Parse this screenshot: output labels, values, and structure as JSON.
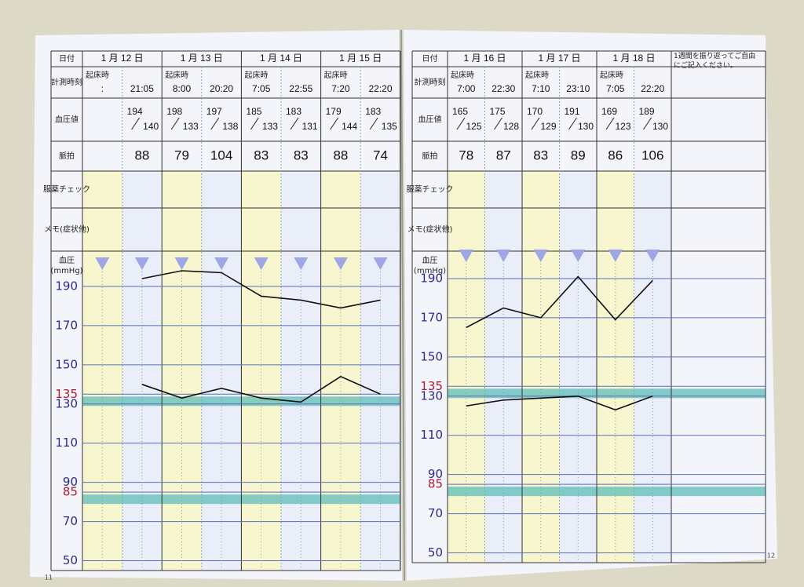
{
  "labels": {
    "date": "日付",
    "time": "計測時刻",
    "bp": "血圧値",
    "pulse": "脈拍",
    "med": "服薬チェック",
    "memo": "メモ(症状他)",
    "chart": "血圧",
    "unit": "(mmHg)",
    "wake": "起床時",
    "note": "1週間を振り返ってご自由にご記入ください。"
  },
  "chart": {
    "ylim": [
      45,
      200
    ],
    "yticks": [
      50,
      70,
      85,
      90,
      110,
      130,
      135,
      150,
      170,
      190
    ],
    "tick_colors": [
      "#2a2a8c",
      "#2a2a8c",
      "#b01c2e",
      "#2a2a8c",
      "#2a2a8c",
      "#2a2a8c",
      "#b01c2e",
      "#2a2a8c",
      "#2a2a8c",
      "#2a2a8c"
    ],
    "line_color": "#111111",
    "band_color": "#5fbcb8"
  },
  "pages": [
    {
      "number": "11",
      "days": [
        {
          "date": "1 月 12 日",
          "readings": [
            {
              "time": ":",
              "sys": null,
              "dia": null,
              "pulse": null
            },
            {
              "time": "21:05",
              "sys": 194,
              "dia": 140,
              "pulse": 88
            }
          ]
        },
        {
          "date": "1 月 13 日",
          "readings": [
            {
              "time": "8:00",
              "sys": 198,
              "dia": 133,
              "pulse": 79
            },
            {
              "time": "20:20",
              "sys": 197,
              "dia": 138,
              "pulse": 104
            }
          ]
        },
        {
          "date": "1 月 14 日",
          "readings": [
            {
              "time": "7:05",
              "sys": 185,
              "dia": 133,
              "pulse": 83
            },
            {
              "time": "22:55",
              "sys": 183,
              "dia": 131,
              "pulse": 83
            }
          ]
        },
        {
          "date": "1 月 15 日",
          "readings": [
            {
              "time": "7:20",
              "sys": 179,
              "dia": 144,
              "pulse": 88
            },
            {
              "time": "22:20",
              "sys": 183,
              "dia": 135,
              "pulse": 74
            }
          ]
        }
      ]
    },
    {
      "number": "12",
      "days": [
        {
          "date": "1 月 16 日",
          "readings": [
            {
              "time": "7:00",
              "sys": 165,
              "dia": 125,
              "pulse": 78
            },
            {
              "time": "22:30",
              "sys": 175,
              "dia": 128,
              "pulse": 87
            }
          ]
        },
        {
          "date": "1 月 17 日",
          "readings": [
            {
              "time": "7:10",
              "sys": 170,
              "dia": 129,
              "pulse": 83
            },
            {
              "time": "23:10",
              "sys": 191,
              "dia": 130,
              "pulse": 89
            }
          ]
        },
        {
          "date": "1 月 18 日",
          "readings": [
            {
              "time": "7:05",
              "sys": 169,
              "dia": 123,
              "pulse": 86
            },
            {
              "time": "22:20",
              "sys": 189,
              "dia": 130,
              "pulse": 106
            }
          ]
        }
      ]
    }
  ]
}
